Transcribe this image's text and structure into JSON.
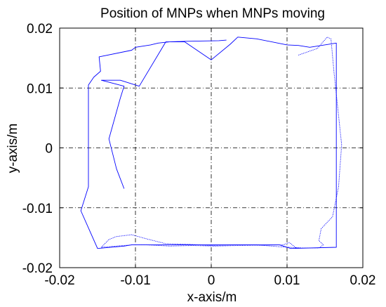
{
  "chart_data": {
    "type": "line",
    "title": "Position of MNPs when MNPs moving",
    "xlabel": "x-axis/m",
    "ylabel": "y-axis/m",
    "xlim": [
      -0.02,
      0.02
    ],
    "ylim": [
      -0.02,
      0.02
    ],
    "xticks": [
      -0.02,
      -0.01,
      0,
      0.01,
      0.02
    ],
    "yticks": [
      -0.02,
      -0.01,
      0,
      0.01,
      0.02
    ],
    "xtick_labels": [
      "-0.02",
      "-0.01",
      "0",
      "0.01",
      "0.02"
    ],
    "ytick_labels": [
      "-0.02",
      "-0.01",
      "0",
      "0.01",
      "0.02"
    ],
    "grid": "dash-dot",
    "series": [
      {
        "style": "solid",
        "color": "#0000ff",
        "x": [
          -0.0115,
          -0.0125,
          -0.0135,
          -0.012,
          -0.0115,
          -0.0145,
          -0.012,
          -0.0095,
          -0.006,
          -0.0055,
          -0.0035,
          0,
          0.0025,
          0.0035,
          0.006,
          0.01,
          0.0115,
          0.013,
          0.0165,
          0.0165,
          0.0105,
          0.009,
          -0.0105,
          -0.0115,
          -0.015,
          -0.0172,
          -0.0162,
          -0.0162,
          -0.0155,
          -0.0146,
          -0.0148,
          -0.0105,
          -0.01,
          -0.008,
          -0.007,
          -0.0055,
          -0.0035,
          0.001,
          0.002
        ],
        "y": [
          -0.0068,
          -0.0035,
          0.0015,
          0.0083,
          0.0103,
          0.0113,
          0.0113,
          0.0103,
          0.0177,
          0.0177,
          0.0177,
          0.0147,
          0.0173,
          0.0185,
          0.0182,
          0.0172,
          0.0171,
          0.0168,
          0.0175,
          -0.0166,
          -0.0168,
          -0.0162,
          -0.0162,
          -0.0164,
          -0.0168,
          -0.0105,
          -0.0065,
          0.0105,
          0.0118,
          0.0128,
          0.0152,
          0.0163,
          0.0168,
          0.0172,
          0.0175,
          0.0177,
          0.0178,
          0.0179,
          0.018
        ]
      },
      {
        "style": "dotted",
        "color": "#0000ff",
        "x": [
          0.0115,
          0.014,
          0.0153,
          0.0158,
          0.0162,
          0.0172,
          0.0168,
          0.016,
          0.0145,
          0.0142,
          0.0148,
          0.0142,
          0.0112,
          0.0108,
          0.0103,
          0.0095,
          0.0035,
          0.0005,
          -0.0025,
          -0.0055,
          -0.0085,
          -0.0105,
          -0.0145,
          -0.0135,
          -0.0125,
          -0.0105,
          -0.0085,
          -0.006,
          -0.003,
          0,
          0.003,
          0.006,
          0.009,
          0.0118
        ],
        "y": [
          0.0155,
          0.0166,
          0.0185,
          0.0182,
          0.0125,
          0.0005,
          -0.0065,
          -0.0115,
          -0.0135,
          -0.0155,
          -0.0162,
          -0.0167,
          -0.0167,
          -0.0163,
          -0.0158,
          -0.0162,
          -0.0163,
          -0.0164,
          -0.0163,
          -0.0164,
          -0.0162,
          -0.0162,
          -0.0166,
          -0.0153,
          -0.0148,
          -0.0145,
          -0.0152,
          -0.016,
          -0.0161,
          -0.0163,
          -0.0162,
          -0.0162,
          -0.0165,
          -0.0167
        ]
      }
    ]
  }
}
